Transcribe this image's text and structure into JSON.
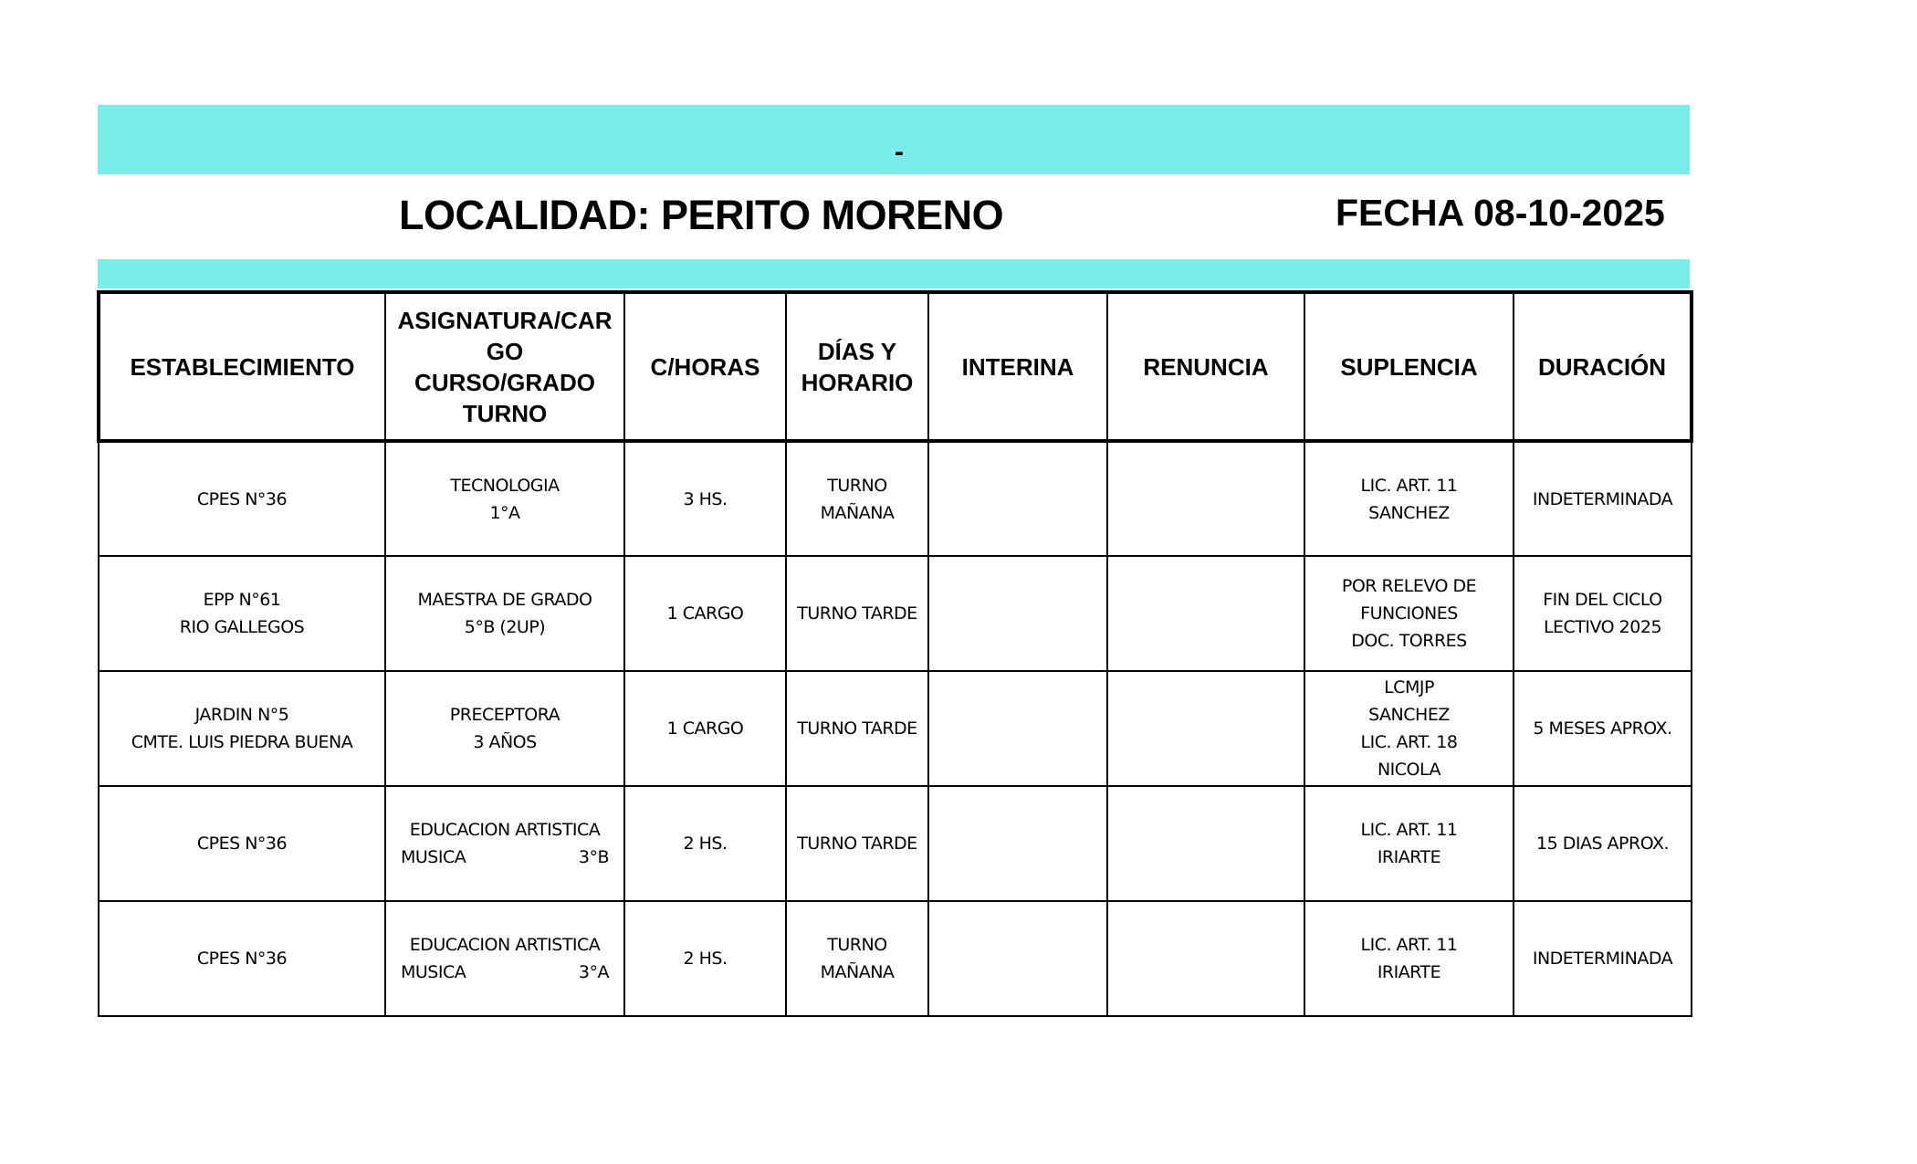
{
  "header": {
    "band_text": "-",
    "localidad": "LOCALIDAD: PERITO MORENO",
    "fecha": "FECHA 08-10-2025",
    "accent_color": "#7aeceb"
  },
  "table": {
    "columns": [
      "ESTABLECIMIENTO",
      "ASIGNATURA/CAR\nGO\nCURSO/GRADO\nTURNO",
      "C/HORAS",
      "DÍAS Y\nHORARIO",
      "INTERINA",
      "RENUNCIA",
      "SUPLENCIA",
      "DURACIÓN"
    ],
    "rows": [
      {
        "establecimiento": "CPES N°36",
        "asignatura": "TECNOLOGIA\n1°A",
        "horas": "3 HS.",
        "horario": "TURNO\nMAÑANA",
        "interina": "",
        "renuncia": "",
        "suplencia": "LIC. ART. 11\nSANCHEZ",
        "duracion": "INDETERMINADA"
      },
      {
        "establecimiento": "EPP N°61\nRIO GALLEGOS",
        "asignatura": "MAESTRA DE GRADO\n5°B  (2UP)",
        "horas": "1 CARGO",
        "horario": "TURNO TARDE",
        "interina": "",
        "renuncia": "",
        "suplencia": "POR RELEVO DE\nFUNCIONES\nDOC. TORRES",
        "duracion": "FIN DEL CICLO\nLECTIVO 2025"
      },
      {
        "establecimiento": "JARDIN N°5\nCMTE. LUIS PIEDRA BUENA",
        "asignatura": "PRECEPTORA\n3 AÑOS",
        "horas": "1 CARGO",
        "horario": "TURNO TARDE",
        "interina": "",
        "renuncia": "",
        "suplencia": "LCMJP\nSANCHEZ\nLIC. ART. 18\nNICOLA",
        "duracion": "5 MESES APROX."
      },
      {
        "establecimiento": "CPES N°36",
        "asignatura_line1": "EDUCACION ARTISTICA",
        "asignatura_left": "MUSICA",
        "asignatura_right": "3°B",
        "horas": "2 HS.",
        "horario": "TURNO TARDE",
        "interina": "",
        "renuncia": "",
        "suplencia": "LIC. ART. 11\nIRIARTE",
        "duracion": "15 DIAS APROX."
      },
      {
        "establecimiento": "CPES N°36",
        "asignatura_line1": "EDUCACION ARTISTICA",
        "asignatura_left": "MUSICA",
        "asignatura_right": "3°A",
        "horas": "2 HS.",
        "horario": "TURNO\nMAÑANA",
        "interina": "",
        "renuncia": "",
        "suplencia": "LIC. ART. 11\nIRIARTE",
        "duracion": "INDETERMINADA"
      }
    ]
  }
}
